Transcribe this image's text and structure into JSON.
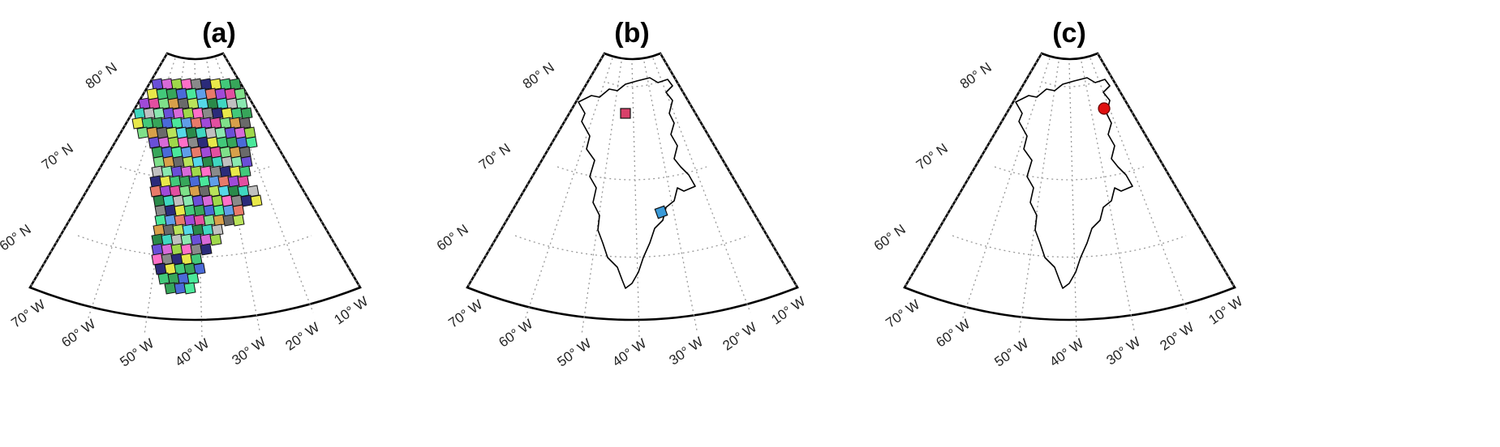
{
  "figure": {
    "panels": [
      {
        "id": "a",
        "title": "(a)",
        "content": "tiles"
      },
      {
        "id": "b",
        "title": "(b)",
        "content": "two-sites",
        "site_colors": [
          "#d8406a",
          "#3a9ad8"
        ]
      },
      {
        "id": "c",
        "title": "(c)",
        "content": "single-site",
        "site_colors": [
          "#e01010"
        ]
      }
    ],
    "lat_labels": [
      "80° N",
      "70° N",
      "60° N"
    ],
    "lon_labels": [
      "70° W",
      "60° W",
      "50° W",
      "40° W",
      "30° W",
      "20° W",
      "10° W"
    ],
    "colors": {
      "frame": "#000000",
      "graticule": "#9a9a9a",
      "coastline": "#000000",
      "tile_palette": [
        "#6a4fd8",
        "#42c97a",
        "#e34fa0",
        "#3fd7c0",
        "#8a8a8a",
        "#5f9ee8",
        "#b9e35a",
        "#d86ad8",
        "#37a65a",
        "#7fe08a",
        "#c0c0c0",
        "#2b2b7a",
        "#e87a6a",
        "#55d8e8",
        "#9fd84a",
        "#4a6ad8",
        "#d8a04a",
        "#8ae8b0",
        "#e8e84a",
        "#a04ad8",
        "#2a8a4a",
        "#ff6fc8",
        "#4ae89a",
        "#6a6a6a"
      ]
    }
  }
}
